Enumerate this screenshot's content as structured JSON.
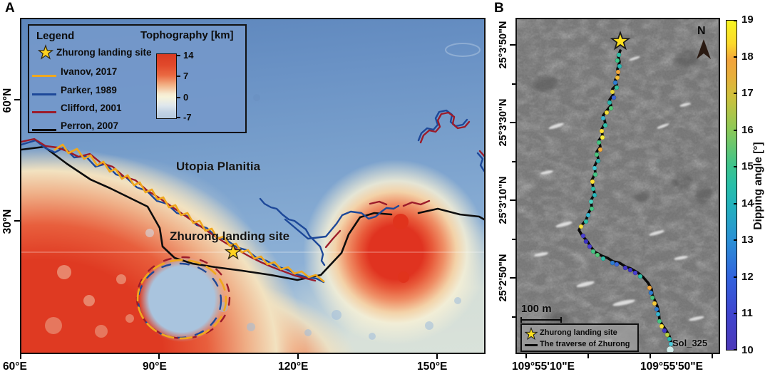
{
  "panel_a": {
    "label": "A",
    "legend": {
      "title": "Legend",
      "colorbar_title": "Tophography [km]",
      "star_label": "Zhurong landing site",
      "entries": [
        {
          "label": "Ivanov, 2017",
          "color": "#f0a81e"
        },
        {
          "label": "Parker, 1989",
          "color": "#1d4899"
        },
        {
          "label": "Clifford, 2001",
          "color": "#9c1b2a"
        },
        {
          "label": "Perron, 2007",
          "color": "#0d0d0d"
        }
      ],
      "colorbar_ticks": [
        "14",
        "7",
        "0",
        "-7"
      ]
    },
    "annotations": {
      "region": "Utopia Planitia",
      "site": "Zhurong landing site"
    },
    "x_ticks": [
      "60°E",
      "90°E",
      "120°E",
      "150°E"
    ],
    "y_ticks": [
      "60°N",
      "30°N"
    ]
  },
  "panel_b": {
    "label": "B",
    "north_label": "N",
    "scale_bar_label": "100 m",
    "legend": {
      "star_label": "Zhurong landing site",
      "line_label": "The traverse of Zhurong"
    },
    "sol_label": "Sol_325",
    "x_ticks": [
      "109°55'10\"E",
      "109°55'50\"E"
    ],
    "y_ticks": [
      "25°3'50\"N",
      "25°3'30\"N",
      "25°3'10\"N",
      "25°2'50\"N"
    ],
    "colorbar": {
      "title": "Dipping angle [°]",
      "max": 19,
      "min": 10,
      "ticks": [
        "19",
        "18",
        "17",
        "16",
        "15",
        "14",
        "13",
        "12",
        "11",
        "10"
      ]
    }
  },
  "colors": {
    "star": "#ffd21f",
    "map_a_lowland_blue": "#7ba0cd",
    "map_a_highland_red": "#df3a22",
    "map_b_gray": "#7b7b7b",
    "traverse_line": "#0a0a0a"
  },
  "traverse": {
    "points": [
      [
        145,
        44
      ],
      [
        142,
        52
      ],
      [
        144,
        60
      ],
      [
        141,
        70
      ],
      [
        142,
        78
      ],
      [
        138,
        85
      ],
      [
        140,
        92
      ],
      [
        134,
        98
      ],
      [
        135,
        106
      ],
      [
        130,
        113
      ],
      [
        132,
        121
      ],
      [
        127,
        127
      ],
      [
        121,
        135
      ],
      [
        124,
        146
      ],
      [
        119,
        154
      ],
      [
        120,
        163
      ],
      [
        115,
        170
      ],
      [
        117,
        179
      ],
      [
        112,
        186
      ],
      [
        114,
        196
      ],
      [
        109,
        206
      ],
      [
        110,
        216
      ],
      [
        105,
        226
      ],
      [
        107,
        236
      ],
      [
        109,
        245
      ],
      [
        104,
        254
      ],
      [
        105,
        264
      ],
      [
        100,
        273
      ],
      [
        97,
        282
      ],
      [
        90,
        290
      ],
      [
        87,
        296
      ],
      [
        92,
        304
      ],
      [
        99,
        312
      ],
      [
        104,
        320
      ],
      [
        110,
        327
      ],
      [
        119,
        332
      ],
      [
        127,
        335
      ],
      [
        135,
        340
      ],
      [
        144,
        342
      ],
      [
        152,
        347
      ],
      [
        160,
        350
      ],
      [
        170,
        356
      ],
      [
        177,
        362
      ],
      [
        184,
        370
      ],
      [
        189,
        379
      ],
      [
        190,
        387
      ],
      [
        194,
        396
      ],
      [
        197,
        403
      ],
      [
        199,
        412
      ],
      [
        200,
        422
      ],
      [
        204,
        429
      ],
      [
        209,
        436
      ],
      [
        214,
        445
      ],
      [
        217,
        455
      ],
      [
        215,
        462
      ]
    ],
    "dots": [
      [
        143,
        50,
        "#2fbfa8"
      ],
      [
        141,
        58,
        "#3fc48a"
      ],
      [
        144,
        66,
        "#28b7b4"
      ],
      [
        142,
        74,
        "#f0a63c"
      ],
      [
        141,
        82,
        "#f4bc3a"
      ],
      [
        138,
        89,
        "#2e7dd1"
      ],
      [
        140,
        96,
        "#35c09c"
      ],
      [
        134,
        102,
        "#e8d73a"
      ],
      [
        136,
        110,
        "#3a66d8"
      ],
      [
        130,
        117,
        "#2ab5ae"
      ],
      [
        132,
        125,
        "#53c878"
      ],
      [
        126,
        131,
        "#f5e03a"
      ],
      [
        121,
        139,
        "#37b6cf"
      ],
      [
        124,
        149,
        "#2fbfa8"
      ],
      [
        119,
        157,
        "#ffe135"
      ],
      [
        120,
        166,
        "#f8ef3c"
      ],
      [
        115,
        173,
        "#45c584"
      ],
      [
        117,
        183,
        "#f2a93b"
      ],
      [
        112,
        190,
        "#49c47e"
      ],
      [
        114,
        199,
        "#2ab5ae"
      ],
      [
        109,
        209,
        "#43c9d6"
      ],
      [
        110,
        218,
        "#45c584"
      ],
      [
        106,
        228,
        "#ffe135"
      ],
      [
        107,
        238,
        "#2fbfa8"
      ],
      [
        109,
        247,
        "#27b5b8"
      ],
      [
        104,
        256,
        "#4fd0c0"
      ],
      [
        105,
        266,
        "#45c584"
      ],
      [
        100,
        275,
        "#37b6cf"
      ],
      [
        97,
        284,
        "#2fbfa8"
      ],
      [
        90,
        291,
        "#f5e03a"
      ],
      [
        93,
        304,
        "#4a3fd1"
      ],
      [
        97,
        312,
        "#3b32c4"
      ],
      [
        102,
        319,
        "#4a3fd1"
      ],
      [
        107,
        326,
        "#45c584"
      ],
      [
        113,
        331,
        "#53c878"
      ],
      [
        121,
        336,
        "#2fbfa8"
      ],
      [
        134,
        342,
        "#2e7dd1"
      ],
      [
        140,
        344,
        "#3a66d8"
      ],
      [
        152,
        349,
        "#4338c9"
      ],
      [
        159,
        352,
        "#3b32c4"
      ],
      [
        166,
        356,
        "#4a3fd1"
      ],
      [
        173,
        361,
        "#2fbfa8"
      ],
      [
        186,
        377,
        "#f0a63c"
      ],
      [
        188,
        384,
        "#2e7dd1"
      ],
      [
        190,
        391,
        "#49c47e"
      ],
      [
        193,
        399,
        "#f5c83a"
      ],
      [
        196,
        407,
        "#2e7dd1"
      ],
      [
        198,
        414,
        "#37b6cf"
      ],
      [
        200,
        424,
        "#45c584"
      ],
      [
        203,
        431,
        "#ffe135"
      ],
      [
        207,
        437,
        "#4338c9"
      ],
      [
        211,
        443,
        "#b8d23f"
      ],
      [
        214,
        449,
        "#2ab5ae"
      ],
      [
        216,
        456,
        "#49cbdc"
      ],
      [
        215,
        464,
        "#cfeae8",
        5
      ]
    ]
  }
}
